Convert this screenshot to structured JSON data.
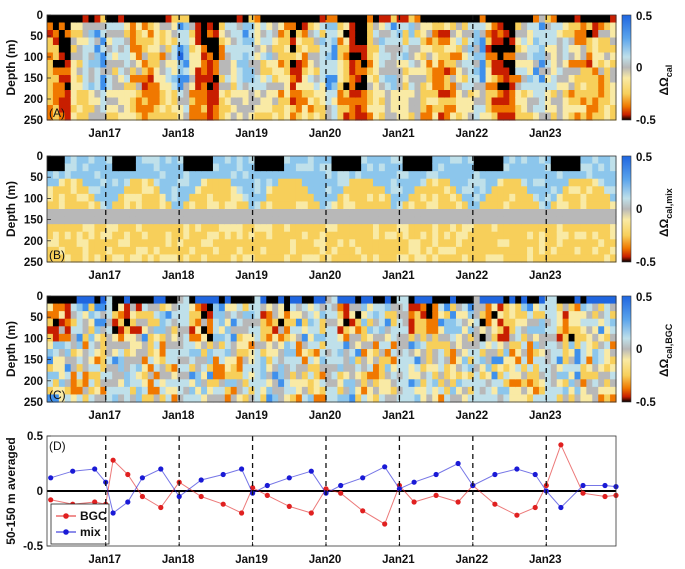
{
  "colors": {
    "bgc": "#e02020",
    "mix": "#1a1ad6",
    "cmap": [
      "#000000",
      "#c81e00",
      "#f07800",
      "#f7cf5a",
      "#f9eaa5",
      "#b8b8b8",
      "#bfe0ea",
      "#8cc6ec",
      "#3f90ec",
      "#1f66e0"
    ]
  },
  "chart_data": [
    {
      "id": "A",
      "type": "heatmap",
      "panel_label": "(A)",
      "ylabel": "Depth (m)",
      "ylim": [
        0,
        250
      ],
      "yticks": [
        "0",
        "50",
        "100",
        "150",
        "200",
        "250"
      ],
      "x_range_years": [
        2016.2,
        2023.95
      ],
      "xticks": [
        {
          "year": 2017,
          "label": "Jan17"
        },
        {
          "year": 2018,
          "label": "Jan18"
        },
        {
          "year": 2019,
          "label": "Jan19"
        },
        {
          "year": 2020,
          "label": "Jan20"
        },
        {
          "year": 2021,
          "label": "Jan21"
        },
        {
          "year": 2022,
          "label": "Jan22"
        },
        {
          "year": 2023,
          "label": "Jan23"
        }
      ],
      "colorbar": {
        "label": "ΔΩ",
        "subscript": "cal",
        "range": [
          -0.5,
          0.5
        ],
        "ticks": [
          "0.5",
          "0",
          "-0.5"
        ]
      }
    },
    {
      "id": "B",
      "type": "heatmap",
      "panel_label": "(B)",
      "ylabel": "Depth (m)",
      "ylim": [
        0,
        250
      ],
      "yticks": [
        "0",
        "50",
        "100",
        "150",
        "200",
        "250"
      ],
      "x_range_years": [
        2016.2,
        2023.95
      ],
      "xticks": [
        {
          "year": 2017,
          "label": "Jan17"
        },
        {
          "year": 2018,
          "label": "Jan18"
        },
        {
          "year": 2019,
          "label": "Jan19"
        },
        {
          "year": 2020,
          "label": "Jan20"
        },
        {
          "year": 2021,
          "label": "Jan21"
        },
        {
          "year": 2022,
          "label": "Jan22"
        },
        {
          "year": 2023,
          "label": "Jan23"
        }
      ],
      "colorbar": {
        "label": "ΔΩ",
        "subscript": "cal,mix",
        "range": [
          -0.5,
          0.5
        ],
        "ticks": [
          "0.5",
          "0",
          "-0.5"
        ]
      }
    },
    {
      "id": "C",
      "type": "heatmap",
      "panel_label": "(C)",
      "ylabel": "Depth (m)",
      "ylim": [
        0,
        250
      ],
      "yticks": [
        "0",
        "50",
        "100",
        "150",
        "200",
        "250"
      ],
      "x_range_years": [
        2016.2,
        2023.95
      ],
      "xticks": [
        {
          "year": 2017,
          "label": "Jan17"
        },
        {
          "year": 2018,
          "label": "Jan18"
        },
        {
          "year": 2019,
          "label": "Jan19"
        },
        {
          "year": 2020,
          "label": "Jan20"
        },
        {
          "year": 2021,
          "label": "Jan21"
        },
        {
          "year": 2022,
          "label": "Jan22"
        },
        {
          "year": 2023,
          "label": "Jan23"
        }
      ],
      "colorbar": {
        "label": "ΔΩ",
        "subscript": "cal,BGC",
        "range": [
          -0.5,
          0.5
        ],
        "ticks": [
          "0.5",
          "0",
          "-0.5"
        ]
      }
    },
    {
      "id": "D",
      "type": "line",
      "panel_label": "(D)",
      "ylabel": "50-150 m averaged",
      "ylim": [
        -0.5,
        0.5
      ],
      "yticks": [
        "0.5",
        "0",
        "-0.5"
      ],
      "x_range_years": [
        2016.2,
        2023.95
      ],
      "xticks": [
        {
          "year": 2017,
          "label": "Jan17"
        },
        {
          "year": 2018,
          "label": "Jan18"
        },
        {
          "year": 2019,
          "label": "Jan19"
        },
        {
          "year": 2020,
          "label": "Jan20"
        },
        {
          "year": 2021,
          "label": "Jan21"
        },
        {
          "year": 2022,
          "label": "Jan22"
        },
        {
          "year": 2023,
          "label": "Jan23"
        }
      ],
      "legend_placement": "bottom-left",
      "series": [
        {
          "name": "BGC",
          "x": [
            2016.25,
            2016.55,
            2016.85,
            2017.0,
            2017.1,
            2017.3,
            2017.5,
            2017.75,
            2018.0,
            2018.3,
            2018.6,
            2018.85,
            2019.0,
            2019.2,
            2019.5,
            2019.8,
            2020.0,
            2020.2,
            2020.5,
            2020.8,
            2021.0,
            2021.2,
            2021.5,
            2021.8,
            2022.0,
            2022.3,
            2022.6,
            2022.85,
            2023.0,
            2023.2,
            2023.5,
            2023.8,
            2023.95
          ],
          "values": [
            -0.08,
            -0.12,
            -0.1,
            -0.12,
            0.28,
            0.15,
            -0.05,
            -0.15,
            0.08,
            -0.05,
            -0.12,
            -0.2,
            0.03,
            -0.04,
            -0.14,
            -0.2,
            0.02,
            -0.02,
            -0.18,
            -0.3,
            0.05,
            -0.1,
            -0.04,
            -0.1,
            0.05,
            -0.12,
            -0.22,
            -0.15,
            0.05,
            0.42,
            -0.02,
            -0.05,
            -0.04
          ]
        },
        {
          "name": "mix",
          "x": [
            2016.25,
            2016.55,
            2016.85,
            2017.0,
            2017.1,
            2017.3,
            2017.5,
            2017.75,
            2018.0,
            2018.3,
            2018.6,
            2018.85,
            2019.0,
            2019.2,
            2019.5,
            2019.8,
            2020.0,
            2020.2,
            2020.5,
            2020.8,
            2021.0,
            2021.2,
            2021.5,
            2021.8,
            2022.0,
            2022.3,
            2022.6,
            2022.85,
            2023.0,
            2023.2,
            2023.5,
            2023.8,
            2023.95
          ],
          "values": [
            0.12,
            0.18,
            0.2,
            0.08,
            -0.2,
            -0.1,
            0.12,
            0.2,
            -0.05,
            0.1,
            0.15,
            0.2,
            -0.02,
            0.05,
            0.12,
            0.18,
            -0.02,
            0.05,
            0.12,
            0.22,
            0.02,
            0.08,
            0.15,
            0.25,
            0.05,
            0.15,
            0.2,
            0.15,
            0.0,
            -0.15,
            0.05,
            0.05,
            0.04
          ]
        }
      ]
    }
  ]
}
